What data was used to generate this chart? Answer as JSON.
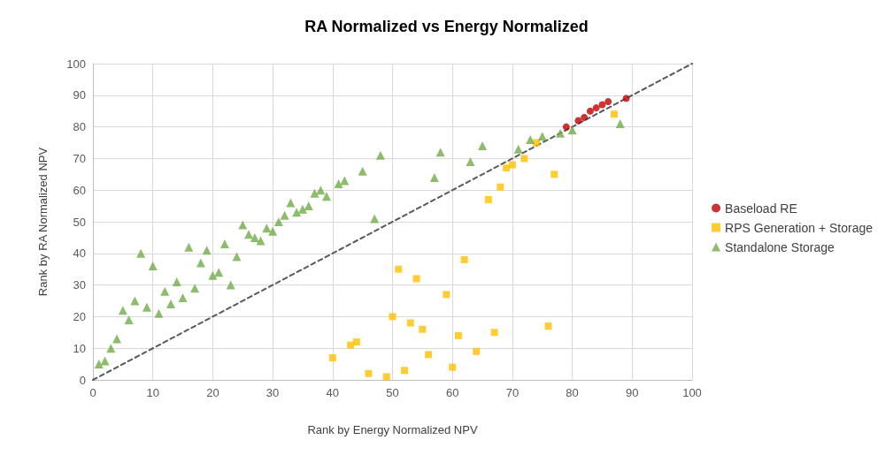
{
  "chart_data": {
    "type": "scatter",
    "title": "RA Normalized vs Energy Normalized",
    "xlabel": "Rank by Energy Normalized NPV",
    "ylabel": "Rank by RA Normalized NPV",
    "xlim": [
      0,
      100
    ],
    "ylim": [
      0,
      100
    ],
    "xticks": [
      0,
      10,
      20,
      30,
      40,
      50,
      60,
      70,
      80,
      90,
      100
    ],
    "yticks": [
      0,
      10,
      20,
      30,
      40,
      50,
      60,
      70,
      80,
      90,
      100
    ],
    "grid": true,
    "legend": "right",
    "series": [
      {
        "name": "Baseload RE",
        "color": "#c00000",
        "marker": "circle",
        "x": [
          79,
          81,
          82,
          83,
          84,
          85,
          86,
          89
        ],
        "values": [
          80,
          82,
          83,
          85,
          86,
          87,
          88,
          89
        ]
      },
      {
        "name": "RPS Generation + Storage",
        "color": "#ffc000",
        "marker": "square",
        "x": [
          40,
          43,
          44,
          46,
          49,
          50,
          51,
          52,
          53,
          54,
          55,
          56,
          59,
          60,
          61,
          62,
          64,
          66,
          67,
          68,
          69,
          70,
          72,
          74,
          76,
          77,
          87
        ],
        "values": [
          7,
          11,
          12,
          2,
          1,
          20,
          35,
          3,
          18,
          32,
          16,
          8,
          27,
          4,
          14,
          38,
          9,
          57,
          15,
          61,
          67,
          68,
          70,
          75,
          17,
          65,
          84
        ]
      },
      {
        "name": "Standalone Storage",
        "color": "#70ad47",
        "marker": "triangle",
        "x": [
          1,
          2,
          3,
          4,
          5,
          6,
          7,
          8,
          9,
          10,
          11,
          12,
          13,
          14,
          15,
          16,
          17,
          18,
          19,
          20,
          21,
          22,
          23,
          24,
          25,
          26,
          27,
          28,
          29,
          30,
          31,
          32,
          33,
          34,
          35,
          36,
          37,
          38,
          39,
          41,
          42,
          45,
          47,
          48,
          57,
          58,
          63,
          65,
          71,
          73,
          75,
          78,
          80,
          88
        ],
        "values": [
          5,
          6,
          10,
          13,
          22,
          19,
          25,
          40,
          23,
          36,
          21,
          28,
          24,
          31,
          26,
          42,
          29,
          37,
          41,
          33,
          34,
          43,
          30,
          39,
          49,
          46,
          45,
          44,
          48,
          47,
          50,
          52,
          56,
          53,
          54,
          55,
          59,
          60,
          58,
          62,
          63,
          66,
          51,
          71,
          64,
          72,
          69,
          74,
          73,
          76,
          77,
          78,
          79,
          81
        ]
      },
      {
        "type": "line",
        "color": "#595959",
        "marker": "none",
        "line_style": "dashed",
        "x": [
          0,
          100
        ],
        "values": [
          0,
          100
        ]
      }
    ]
  }
}
